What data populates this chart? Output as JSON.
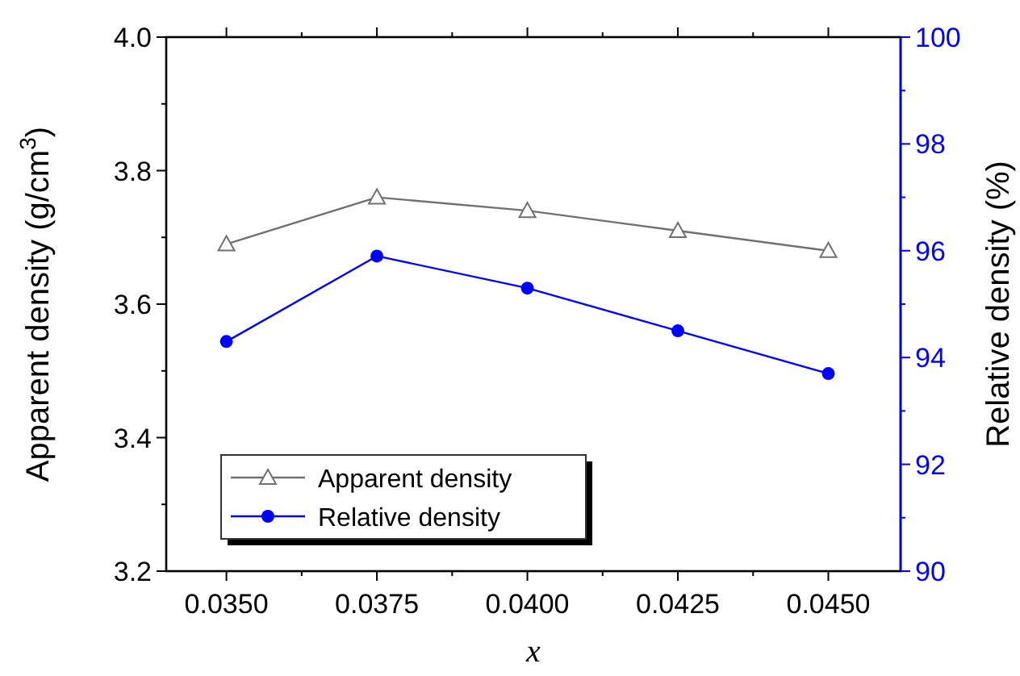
{
  "chart_data": {
    "type": "line",
    "xlabel": "x",
    "ylabel": "Apparent density (g/cm$^{3}$)",
    "y2label": "Relative density (%)",
    "x": [
      0.035,
      0.0375,
      0.04,
      0.0425,
      0.045
    ],
    "xlim": [
      0.034,
      0.0462
    ],
    "xticks": [
      {
        "value": 0.035,
        "label": "0.0350"
      },
      {
        "value": 0.03625,
        "label": null
      },
      {
        "value": 0.0375,
        "label": "0.0375"
      },
      {
        "value": 0.03875,
        "label": null
      },
      {
        "value": 0.04,
        "label": "0.0400"
      },
      {
        "value": 0.04125,
        "label": null
      },
      {
        "value": 0.0425,
        "label": "0.0425"
      },
      {
        "value": 0.04375,
        "label": null
      },
      {
        "value": 0.045,
        "label": "0.0450"
      }
    ],
    "ylim": [
      3.2,
      4.0
    ],
    "yticks": [
      3.2,
      {
        "value": 3.3,
        "label": null
      },
      3.4,
      {
        "value": 3.5,
        "label": null
      },
      3.6,
      {
        "value": 3.7,
        "label": null
      },
      3.8,
      {
        "value": 3.9,
        "label": null
      },
      {
        "value": 4.0,
        "label": "4.0"
      }
    ],
    "y2lim": [
      90,
      100
    ],
    "y2ticks": [
      90,
      {
        "value": 91,
        "label": null
      },
      92,
      {
        "value": 93,
        "label": null
      },
      94,
      {
        "value": 95,
        "label": null
      },
      96,
      {
        "value": 97,
        "label": null
      },
      98,
      {
        "value": 99,
        "label": null
      },
      100
    ],
    "series": [
      {
        "name": "Apparent density",
        "color": "#707070",
        "values": [
          3.69,
          3.76,
          3.74,
          3.71,
          3.68
        ],
        "marker": "triangle"
      },
      {
        "name": "Relative density",
        "color": "#0000ff",
        "values": [
          94.3,
          95.9,
          95.3,
          94.5,
          93.7
        ],
        "marker": "circle",
        "axis": "y2"
      }
    ],
    "legend": "bottom left",
    "grid": false
  }
}
